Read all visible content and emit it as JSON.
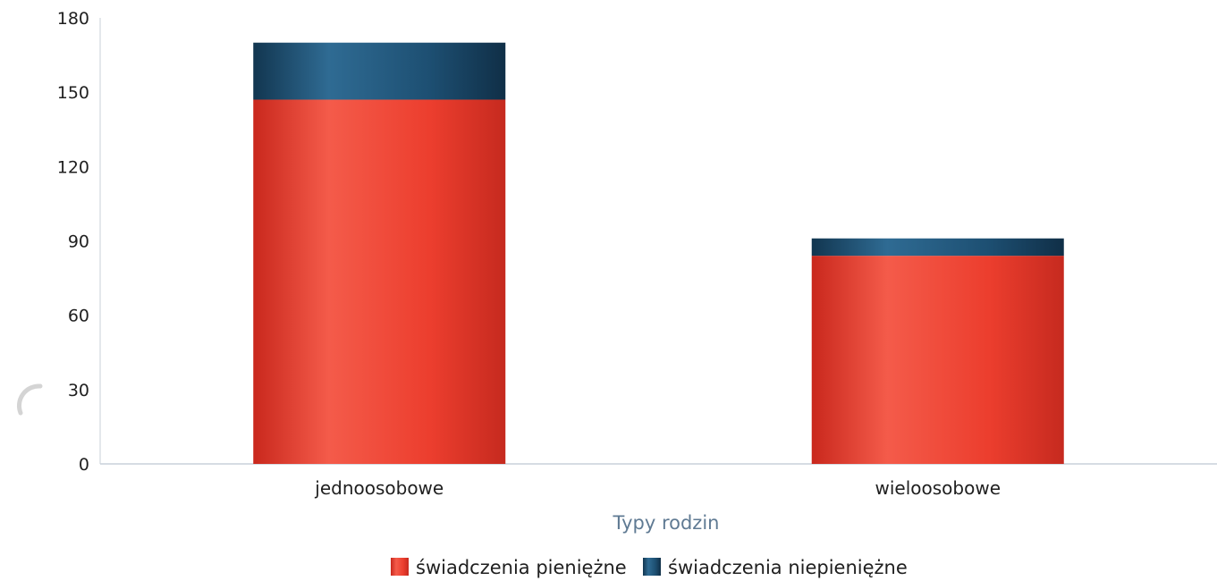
{
  "chart_data": {
    "type": "bar",
    "stacked": true,
    "categories": [
      "jednoosobowe",
      "wieloosobowe"
    ],
    "series": [
      {
        "name": "świadczenia pieniężne",
        "values": [
          147,
          84
        ],
        "color": "#e8392a"
      },
      {
        "name": "świadczenia niepieniężne",
        "values": [
          23,
          7
        ],
        "color": "#1d4f72"
      }
    ],
    "title": "",
    "xlabel": "Typy rodzin",
    "ylabel": "",
    "ylim": [
      0,
      180
    ],
    "yticks": [
      0,
      30,
      60,
      90,
      120,
      150,
      180
    ],
    "grid": false,
    "legend_position": "bottom-center"
  }
}
